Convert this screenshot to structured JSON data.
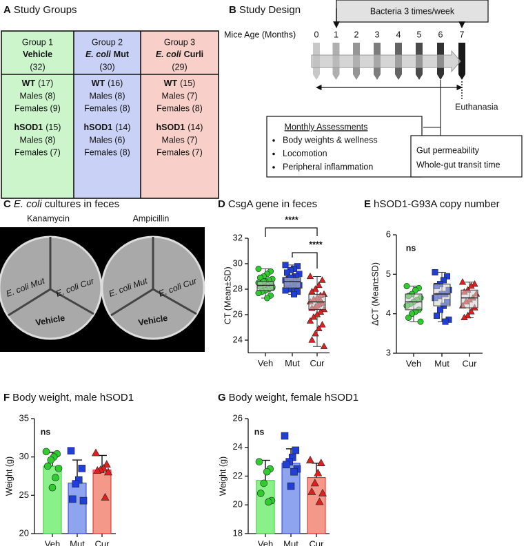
{
  "panels": {
    "a": {
      "letter": "A",
      "title": "Study Groups",
      "groups": [
        {
          "group": "Group 1",
          "name": [
            "Vehicle"
          ],
          "total": "(32)",
          "wt": [
            "WT",
            "(17)"
          ],
          "wt_males": "Males (8)",
          "wt_females": "Females (9)",
          "hsod1": [
            "hSOD1",
            "(15)"
          ],
          "hsod1_males": "Males (8)",
          "hsod1_females": "Females (7)"
        },
        {
          "group": "Group 2",
          "name": [
            "E. coli",
            "Mut"
          ],
          "total": "(30)",
          "wt": [
            "WT",
            "(16)"
          ],
          "wt_males": "Males (8)",
          "wt_females": "Females (8)",
          "hsod1": [
            "hSOD1",
            "(14)"
          ],
          "hsod1_males": "Males (6)",
          "hsod1_females": "Females (8)"
        },
        {
          "group": "Group 3",
          "name": [
            "E. coli",
            "Curli"
          ],
          "total": "(29)",
          "wt": [
            "WT",
            "(15)"
          ],
          "wt_males": "Males (7)",
          "wt_females": "Females (8)",
          "hsod1": [
            "hSOD1",
            "(14)"
          ],
          "hsod1_males": "Males (7)",
          "hsod1_females": "Females (7)"
        }
      ]
    },
    "b": {
      "letter": "B",
      "title": "Study Design",
      "bacteria": "Bacteria 3 times/week",
      "age_label": "Mice Age (Months)",
      "ages": [
        0,
        1,
        2,
        3,
        4,
        5,
        6,
        7
      ],
      "euthanasia": "Euthanasia",
      "assessments_title": "Monthly Assessments",
      "assessments": [
        "Body weights & wellness",
        "Locomotion",
        "Peripheral inflammation"
      ],
      "gut": [
        "Gut permeability",
        "Whole-gut transit time"
      ]
    },
    "c": {
      "letter": "C",
      "title": [
        "E. coli",
        "cultures in feces"
      ],
      "plates": [
        "Kanamycin",
        "Ampicillin"
      ],
      "sections": [
        "E. coli Mut",
        "E. coli Cur",
        "Vehicle"
      ]
    }
  },
  "chart_data": [
    {
      "panel": "D",
      "type": "box",
      "title": "CsgA gene in feces",
      "ylabel": "CT (Mean±SD)",
      "categories": [
        "Veh",
        "Mut",
        "Cur"
      ],
      "ylim": [
        23,
        32
      ],
      "yticks": [
        24,
        26,
        28,
        30,
        32
      ],
      "annotations": [
        "****",
        "****"
      ],
      "boxes": [
        {
          "color": "#2ecc2e",
          "marker": "circle",
          "min": 27.3,
          "q1": 27.9,
          "median": 28.3,
          "q3": 28.6,
          "max": 29.6,
          "points": [
            29.6,
            29.4,
            29.2,
            29.0,
            28.9,
            28.8,
            28.7,
            28.6,
            28.5,
            28.5,
            28.4,
            28.3,
            28.3,
            28.2,
            28.1,
            28.0,
            27.9,
            27.8,
            27.7,
            27.5,
            27.3,
            28.6,
            28.4,
            28.2
          ]
        },
        {
          "color": "#1f3fd8",
          "marker": "square",
          "min": 27.6,
          "q1": 28.1,
          "median": 28.6,
          "q3": 28.9,
          "max": 29.9,
          "points": [
            29.9,
            29.8,
            29.6,
            29.5,
            29.3,
            29.2,
            29.0,
            28.9,
            28.8,
            28.7,
            28.6,
            28.6,
            28.5,
            28.4,
            28.3,
            28.2,
            28.1,
            28.0,
            27.9,
            27.8,
            27.6,
            28.9,
            28.5,
            28.3
          ]
        },
        {
          "color": "#e02020",
          "marker": "triangle",
          "min": 23.5,
          "q1": 26.4,
          "median": 27.0,
          "q3": 27.6,
          "max": 29.0,
          "points": [
            29.0,
            28.7,
            28.3,
            28.0,
            27.8,
            27.6,
            27.5,
            27.3,
            27.2,
            27.0,
            26.9,
            26.8,
            26.6,
            26.5,
            26.4,
            26.2,
            26.0,
            25.8,
            25.5,
            25.2,
            24.9,
            24.5,
            24.0,
            23.5,
            27.1,
            26.7
          ]
        }
      ]
    },
    {
      "panel": "E",
      "type": "box",
      "title": "hSOD1-G93A copy number",
      "ylabel": "ΔCT (Mean±SD)",
      "categories": [
        "Veh",
        "Mut",
        "Cur"
      ],
      "ylim": [
        3,
        6
      ],
      "yticks": [
        3,
        4,
        5,
        6
      ],
      "annotations": [
        "ns"
      ],
      "boxes": [
        {
          "color": "#2ecc2e",
          "marker": "circle",
          "min": 3.8,
          "q1": 4.1,
          "median": 4.3,
          "q3": 4.5,
          "max": 4.7,
          "points": [
            4.7,
            4.65,
            4.6,
            4.5,
            4.45,
            4.4,
            4.35,
            4.3,
            4.25,
            4.2,
            4.1,
            4.05,
            4.0,
            3.9,
            3.8
          ]
        },
        {
          "color": "#1f3fd8",
          "marker": "square",
          "min": 3.8,
          "q1": 4.2,
          "median": 4.5,
          "q3": 4.75,
          "max": 5.05,
          "points": [
            5.05,
            4.95,
            4.85,
            4.75,
            4.7,
            4.6,
            4.5,
            4.5,
            4.45,
            4.4,
            4.3,
            4.2,
            4.1,
            3.95,
            3.85,
            3.8
          ]
        },
        {
          "color": "#e02020",
          "marker": "triangle",
          "min": 3.9,
          "q1": 4.15,
          "median": 4.4,
          "q3": 4.6,
          "max": 4.8,
          "points": [
            4.8,
            4.75,
            4.7,
            4.6,
            4.55,
            4.5,
            4.4,
            4.35,
            4.3,
            4.2,
            4.15,
            4.05,
            3.95,
            3.9
          ]
        }
      ]
    },
    {
      "panel": "F",
      "type": "bar",
      "title": "Body weight, male hSOD1",
      "ylabel": "Weight (g)",
      "categories": [
        "Veh",
        "Mut",
        "Cur"
      ],
      "ylim": [
        20,
        35
      ],
      "yticks": [
        20,
        25,
        30,
        35
      ],
      "annotations": [
        "ns"
      ],
      "values": [
        28.8,
        26.6,
        28.3
      ],
      "errors": [
        1.8,
        3.0,
        1.9
      ],
      "colors": [
        "#8af08a",
        "#8ea4ef",
        "#f4988a"
      ],
      "point_colors": [
        "#2ecc2e",
        "#1f3fd8",
        "#e02020"
      ],
      "markers": [
        "circle",
        "square",
        "triangle"
      ],
      "points": [
        [
          30.7,
          30.4,
          30.0,
          29.6,
          28.8,
          28.5,
          27.3,
          26.0
        ],
        [
          30.8,
          28.5,
          27.0,
          26.5,
          24.5,
          24.3
        ],
        [
          30.5,
          29.0,
          28.5,
          28.3,
          28.2,
          28.0,
          24.7
        ]
      ]
    },
    {
      "panel": "G",
      "type": "bar",
      "title": "Body weight, female hSOD1",
      "ylabel": "Weight (g)",
      "categories": [
        "Veh",
        "Mut",
        "Cur"
      ],
      "ylim": [
        18,
        26
      ],
      "yticks": [
        18,
        20,
        22,
        24,
        26
      ],
      "annotations": [
        "ns"
      ],
      "values": [
        21.7,
        22.9,
        21.9
      ],
      "errors": [
        1.4,
        1.0,
        1.0
      ],
      "colors": [
        "#8af08a",
        "#8ea4ef",
        "#f4988a"
      ],
      "point_colors": [
        "#2ecc2e",
        "#1f3fd8",
        "#e02020"
      ],
      "markers": [
        "circle",
        "square",
        "triangle"
      ],
      "points": [
        [
          23.0,
          22.5,
          22.3,
          21.5,
          20.8,
          20.3,
          20.2
        ],
        [
          24.8,
          23.8,
          23.3,
          23.0,
          22.8,
          22.5,
          22.3,
          21.3
        ],
        [
          23.1,
          22.9,
          22.2,
          21.5,
          20.9,
          20.8,
          20.2
        ]
      ]
    }
  ]
}
